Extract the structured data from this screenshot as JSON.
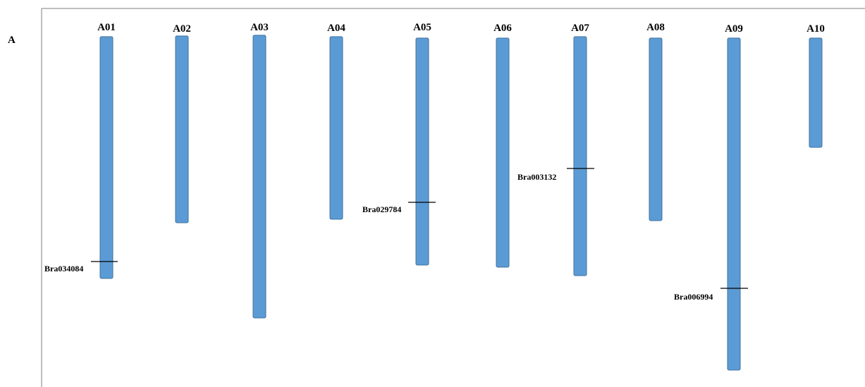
{
  "panel_label": "A",
  "bar_color": "#5b9bd5",
  "chromosomes": [
    {
      "name": "A01",
      "marker": {
        "gene": "Bra034084"
      }
    },
    {
      "name": "A02"
    },
    {
      "name": "A03"
    },
    {
      "name": "A04"
    },
    {
      "name": "A05",
      "marker": {
        "gene": "Bra029784"
      }
    },
    {
      "name": "A06"
    },
    {
      "name": "A07",
      "marker": {
        "gene": "Bra003132"
      }
    },
    {
      "name": "A08"
    },
    {
      "name": "A09",
      "marker": {
        "gene": "Bra006994"
      }
    },
    {
      "name": "A10"
    }
  ]
}
